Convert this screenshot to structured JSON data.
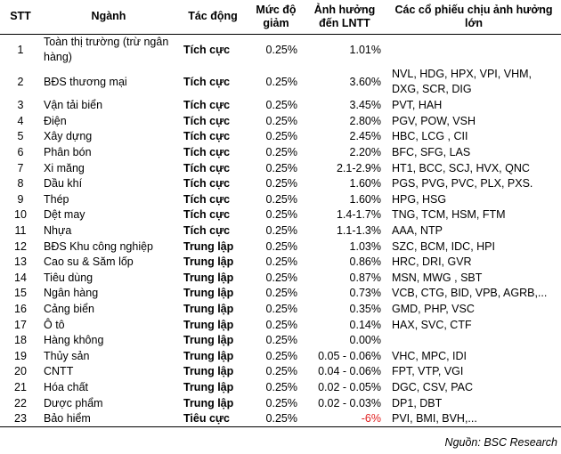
{
  "headers": {
    "stt": "STT",
    "sector": "Ngành",
    "impact": "Tác động",
    "level": "Mức độ giảm",
    "effect": "Ảnh hưởng đến LNTT",
    "stocks": "Các cổ phiếu chịu ảnh hưởng lớn"
  },
  "rows": [
    {
      "stt": "1",
      "sector": "Toàn thị trường (trừ ngân hàng)",
      "impact": "Tích cực",
      "level": "0.25%",
      "effect": "1.01%",
      "stocks": ""
    },
    {
      "stt": "2",
      "sector": "BĐS thương mại",
      "impact": "Tích cực",
      "level": "0.25%",
      "effect": "3.60%",
      "stocks": "NVL, HDG, HPX, VPI, VHM, DXG, SCR, DIG"
    },
    {
      "stt": "3",
      "sector": "Vận tải biển",
      "impact": "Tích cực",
      "level": "0.25%",
      "effect": "3.45%",
      "stocks": "PVT, HAH"
    },
    {
      "stt": "4",
      "sector": "Điện",
      "impact": "Tích cực",
      "level": "0.25%",
      "effect": "2.80%",
      "stocks": "PGV, POW, VSH"
    },
    {
      "stt": "5",
      "sector": "Xây dựng",
      "impact": "Tích cực",
      "level": "0.25%",
      "effect": "2.45%",
      "stocks": "HBC, LCG , CII"
    },
    {
      "stt": "6",
      "sector": "Phân bón",
      "impact": "Tích cực",
      "level": "0.25%",
      "effect": "2.20%",
      "stocks": "BFC, SFG, LAS"
    },
    {
      "stt": "7",
      "sector": "Xi măng",
      "impact": "Tích cực",
      "level": "0.25%",
      "effect": "2.1-2.9%",
      "stocks": "HT1, BCC, SCJ, HVX, QNC"
    },
    {
      "stt": "8",
      "sector": "Dầu khí",
      "impact": "Tích cực",
      "level": "0.25%",
      "effect": "1.60%",
      "stocks": "PGS, PVG, PVC, PLX, PXS."
    },
    {
      "stt": "9",
      "sector": "Thép",
      "impact": "Tích cực",
      "level": "0.25%",
      "effect": "1.60%",
      "stocks": "HPG, HSG"
    },
    {
      "stt": "10",
      "sector": "Dệt may",
      "impact": "Tích cực",
      "level": "0.25%",
      "effect": "1.4-1.7%",
      "stocks": "TNG, TCM, HSM, FTM"
    },
    {
      "stt": "11",
      "sector": "Nhựa",
      "impact": "Tích cực",
      "level": "0.25%",
      "effect": "1.1-1.3%",
      "stocks": "AAA, NTP"
    },
    {
      "stt": "12",
      "sector": "BĐS Khu công nghiệp",
      "impact": "Trung lập",
      "level": "0.25%",
      "effect": "1.03%",
      "stocks": "SZC, BCM, IDC, HPI"
    },
    {
      "stt": "13",
      "sector": "Cao su & Săm lốp",
      "impact": "Trung lập",
      "level": "0.25%",
      "effect": "0.86%",
      "stocks": "HRC, DRI, GVR"
    },
    {
      "stt": "14",
      "sector": "Tiêu dùng",
      "impact": "Trung lập",
      "level": "0.25%",
      "effect": "0.87%",
      "stocks": "MSN, MWG , SBT"
    },
    {
      "stt": "15",
      "sector": "Ngân hàng",
      "impact": "Trung lập",
      "level": "0.25%",
      "effect": "0.73%",
      "stocks": "VCB, CTG, BID, VPB, AGRB,..."
    },
    {
      "stt": "16",
      "sector": "Cảng biển",
      "impact": "Trung lập",
      "level": "0.25%",
      "effect": "0.35%",
      "stocks": "GMD, PHP, VSC"
    },
    {
      "stt": "17",
      "sector": "Ô tô",
      "impact": "Trung lập",
      "level": "0.25%",
      "effect": "0.14%",
      "stocks": "HAX, SVC, CTF"
    },
    {
      "stt": "18",
      "sector": "Hàng không",
      "impact": "Trung lập",
      "level": "0.25%",
      "effect": "0.00%",
      "stocks": ""
    },
    {
      "stt": "19",
      "sector": "Thủy sản",
      "impact": "Trung lập",
      "level": "0.25%",
      "effect": "0.05 - 0.06%",
      "stocks": "VHC, MPC, IDI"
    },
    {
      "stt": "20",
      "sector": "CNTT",
      "impact": "Trung lập",
      "level": "0.25%",
      "effect": "0.04 - 0.06%",
      "stocks": "FPT, VTP, VGI"
    },
    {
      "stt": "21",
      "sector": "Hóa chất",
      "impact": "Trung lập",
      "level": "0.25%",
      "effect": "0.02 - 0.05%",
      "stocks": "DGC, CSV, PAC"
    },
    {
      "stt": "22",
      "sector": "Dược phẩm",
      "impact": "Trung lập",
      "level": "0.25%",
      "effect": "0.02 - 0.03%",
      "stocks": "DP1, DBT"
    },
    {
      "stt": "23",
      "sector": "Bảo hiểm",
      "impact": "Tiêu cực",
      "level": "0.25%",
      "effect": "-6%",
      "stocks": "PVI, BMI, BVH,...",
      "negative": true
    }
  ],
  "source": "Nguồn: BSC Research",
  "colors": {
    "negative": "#e02020"
  }
}
